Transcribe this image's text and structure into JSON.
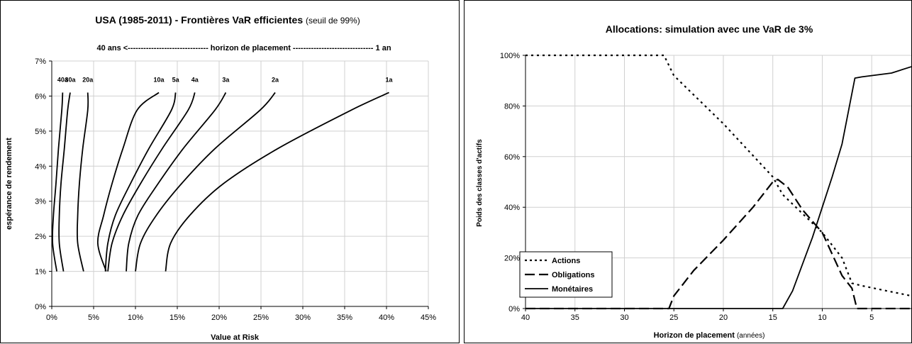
{
  "charts": [
    {
      "title": "USA (1985-2011) - Frontières VaR efficientes",
      "title_note": "(seuil de 99%)",
      "subtitle": "40 ans <------------------------------- horizon de placement ------------------------------- 1 an",
      "xlabel": "Value at Risk",
      "ylabel": "espérance de rendement"
    },
    {
      "title": "Allocations: simulation avec une VaR de 3%",
      "xlabel": "Horizon de placement",
      "xlabel_note": "(années)",
      "ylabel": "Poids des classes d'actifs"
    }
  ],
  "chart_data": [
    {
      "type": "line",
      "title": "USA (1985-2011) - Frontières VaR efficientes (seuil de 99%)",
      "subtitle": "40 ans <------------------------------- horizon de placement ------------------------------- 1 an",
      "xlabel": "Value at Risk",
      "ylabel": "espérance de rendement",
      "xlim": [
        0,
        45
      ],
      "ylim": [
        0,
        7
      ],
      "x_ticks": [
        "0%",
        "5%",
        "10%",
        "15%",
        "20%",
        "25%",
        "30%",
        "35%",
        "40%",
        "45%"
      ],
      "y_ticks": [
        "0%",
        "1%",
        "2%",
        "3%",
        "4%",
        "5%",
        "6%",
        "7%"
      ],
      "grid": true,
      "series": [
        {
          "name": "40a",
          "x": [
            0.6,
            0.1,
            0.2,
            0.5,
            0.8,
            1.2,
            1.3
          ],
          "y": [
            1.0,
            1.8,
            2.6,
            3.5,
            4.5,
            5.6,
            6.1
          ]
        },
        {
          "name": "30a",
          "x": [
            1.4,
            0.9,
            0.9,
            1.1,
            1.5,
            1.9,
            2.2
          ],
          "y": [
            1.0,
            1.8,
            2.6,
            3.5,
            4.5,
            5.6,
            6.1
          ]
        },
        {
          "name": "20a",
          "x": [
            3.8,
            3.1,
            3.1,
            3.3,
            3.7,
            4.3,
            4.3
          ],
          "y": [
            1.0,
            1.8,
            2.6,
            3.5,
            4.5,
            5.6,
            6.1
          ]
        },
        {
          "name": "10a",
          "x": [
            6.5,
            5.5,
            6.2,
            7.2,
            8.5,
            10.2,
            12.8
          ],
          "y": [
            1.0,
            1.8,
            2.6,
            3.5,
            4.5,
            5.6,
            6.1
          ]
        },
        {
          "name": "5a",
          "x": [
            6.4,
            6.7,
            7.6,
            9.4,
            11.6,
            14.3,
            14.8
          ],
          "y": [
            1.0,
            1.8,
            2.6,
            3.5,
            4.5,
            5.6,
            6.1
          ]
        },
        {
          "name": "4a",
          "x": [
            6.7,
            7.2,
            8.5,
            10.6,
            13.2,
            16.3,
            17.1
          ],
          "y": [
            1.0,
            1.8,
            2.6,
            3.5,
            4.5,
            5.6,
            6.1
          ]
        },
        {
          "name": "3a",
          "x": [
            8.9,
            9.2,
            10.3,
            12.7,
            15.7,
            19.5,
            20.8
          ],
          "y": [
            1.0,
            1.8,
            2.6,
            3.5,
            4.5,
            5.6,
            6.1
          ]
        },
        {
          "name": "2a",
          "x": [
            10.0,
            10.6,
            12.5,
            15.5,
            19.5,
            24.9,
            26.7
          ],
          "y": [
            1.0,
            1.8,
            2.6,
            3.5,
            4.5,
            5.6,
            6.1
          ]
        },
        {
          "name": "1a",
          "x": [
            13.6,
            14.2,
            16.5,
            20.5,
            27.0,
            35.8,
            40.3
          ],
          "y": [
            1.0,
            1.8,
            2.6,
            3.5,
            4.5,
            5.6,
            6.1
          ]
        }
      ]
    },
    {
      "type": "line",
      "title": "Allocations: simulation avec une VaR de 3%",
      "xlabel": "Horizon de placement (années)",
      "ylabel": "Poids des classes d'actifs",
      "xlim": [
        40,
        1
      ],
      "ylim": [
        0,
        100
      ],
      "x_ticks": [
        "40",
        "35",
        "30",
        "25",
        "20",
        "15",
        "10",
        "5"
      ],
      "y_ticks": [
        "0%",
        "20%",
        "40%",
        "60%",
        "80%",
        "100%"
      ],
      "grid": true,
      "legend": "bottom-left",
      "series": [
        {
          "name": "Actions",
          "x": [
            40,
            26,
            25,
            20,
            15,
            14,
            10,
            8,
            7,
            6,
            1
          ],
          "y": [
            100,
            100,
            92,
            73,
            52,
            45,
            30,
            20,
            10,
            9,
            5
          ]
        },
        {
          "name": "Obligations",
          "x": [
            40,
            25.5,
            25,
            23,
            20,
            17,
            15,
            14.5,
            13.5,
            12,
            10,
            8,
            7,
            6.5,
            1
          ],
          "y": [
            0,
            0,
            5,
            15,
            27,
            40,
            50,
            51,
            48,
            39,
            30,
            13,
            8,
            0,
            0
          ]
        },
        {
          "name": "Monétaires",
          "x": [
            40,
            14,
            13,
            11,
            10,
            9,
            8,
            6.7,
            6,
            3,
            1
          ],
          "y": [
            0,
            0,
            7,
            28,
            40,
            52,
            65,
            91,
            91.5,
            93,
            95.5
          ]
        }
      ]
    }
  ],
  "legend": {
    "actions": "Actions",
    "obligations": "Obligations",
    "monetaires": "Monétaires"
  }
}
